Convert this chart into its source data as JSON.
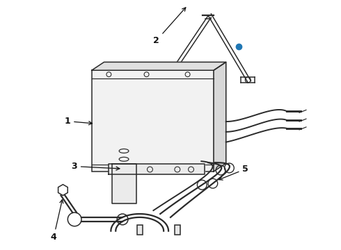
{
  "background_color": "#ffffff",
  "line_color": "#2a2a2a",
  "label_color": "#111111",
  "figsize": [
    4.9,
    3.6
  ],
  "dpi": 100,
  "label_fontsize": 9,
  "label_fontweight": "bold"
}
